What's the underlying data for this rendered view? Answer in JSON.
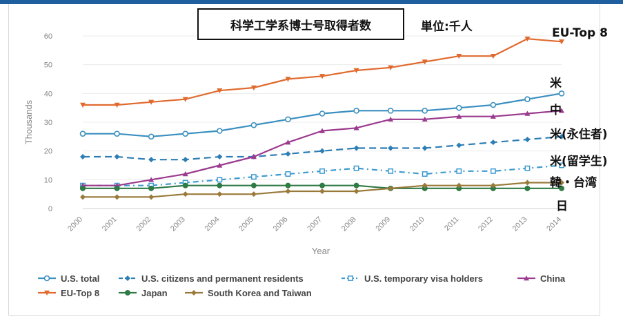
{
  "chart_data": {
    "type": "line",
    "title": "科学工学系博士号取得者数",
    "unit_label": "単位:千人",
    "xlabel": "Year",
    "ylabel": "Thousands",
    "x": [
      "2000",
      "2001",
      "2002",
      "2003",
      "2004",
      "2005",
      "2006",
      "2007",
      "2008",
      "2009",
      "2010",
      "2011",
      "2012",
      "2013",
      "2014"
    ],
    "ylim": [
      0,
      60
    ],
    "yticks": [
      0,
      10,
      20,
      30,
      40,
      50,
      60
    ],
    "grid": true,
    "legend_position": "bottom",
    "series": [
      {
        "name": "U.S. total",
        "color": "#3a8fc0",
        "dash": "solid",
        "marker": "circle-open",
        "values": [
          26,
          26,
          25,
          26,
          27,
          29,
          31,
          33,
          34,
          34,
          34,
          35,
          36,
          38,
          40
        ]
      },
      {
        "name": "U.S. citizens and permanent residents",
        "color": "#2d7eb5",
        "dash": "dash",
        "marker": "diamond",
        "values": [
          18,
          18,
          17,
          17,
          18,
          18,
          19,
          20,
          21,
          21,
          21,
          22,
          23,
          24,
          25
        ]
      },
      {
        "name": "U.S. temporary visa holders",
        "color": "#3d9bd0",
        "dash": "dashdot",
        "marker": "square-open",
        "values": [
          8,
          8,
          8,
          9,
          10,
          11,
          12,
          13,
          14,
          13,
          12,
          13,
          13,
          14,
          15
        ]
      },
      {
        "name": "China",
        "color": "#9b3a8e",
        "dash": "solid",
        "marker": "triangle",
        "values": [
          8,
          8,
          10,
          12,
          15,
          18,
          23,
          27,
          28,
          31,
          31,
          32,
          32,
          33,
          34
        ]
      },
      {
        "name": "EU-Top 8",
        "color": "#e06a2e",
        "dash": "solid",
        "marker": "triangle-down",
        "values": [
          36,
          36,
          37,
          38,
          41,
          42,
          45,
          46,
          48,
          49,
          51,
          53,
          53,
          59,
          58
        ]
      },
      {
        "name": "Japan",
        "color": "#2f7a45",
        "dash": "solid",
        "marker": "circle",
        "values": [
          7,
          7,
          7,
          8,
          8,
          8,
          8,
          8,
          8,
          7,
          7,
          7,
          7,
          7,
          7
        ]
      },
      {
        "name": "South Korea and Taiwan",
        "color": "#9a7a3a",
        "dash": "solid",
        "marker": "diamond",
        "values": [
          4,
          4,
          4,
          5,
          5,
          5,
          6,
          6,
          6,
          7,
          8,
          8,
          8,
          9,
          9
        ]
      }
    ]
  },
  "side_labels": {
    "eu": "EU-Top 8",
    "us": "米",
    "china": "中",
    "us_citizens": "米(永住者)",
    "us_visa": "米(留学生)",
    "korea_taiwan": "韓・台湾",
    "japan": "日"
  }
}
